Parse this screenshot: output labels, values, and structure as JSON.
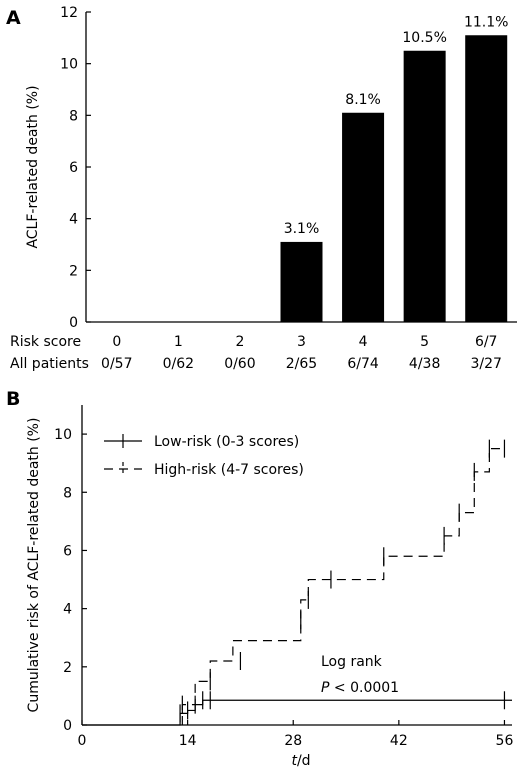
{
  "chart_data": [
    {
      "panel_label": "A",
      "type": "bar",
      "ylabel": "ACLF-related death (%)",
      "ylim": [
        0,
        12
      ],
      "yticks": [
        0,
        2,
        4,
        6,
        8,
        10,
        12
      ],
      "bar_color": "#000000",
      "row_labels": [
        "Risk score",
        "All patients"
      ],
      "categories": [
        "0",
        "1",
        "2",
        "3",
        "4",
        "5",
        "6/7"
      ],
      "all_patients": [
        "0/57",
        "0/62",
        "0/60",
        "2/65",
        "6/74",
        "4/38",
        "3/27"
      ],
      "values": [
        0,
        0,
        0,
        3.1,
        8.1,
        10.5,
        11.1
      ],
      "data_labels": [
        "",
        "",
        "",
        "3.1%",
        "8.1%",
        "10.5%",
        "11.1%"
      ]
    },
    {
      "panel_label": "B",
      "type": "line",
      "ylabel": "Cumulative risk of ACLF-related death (%)",
      "xlabel_italic": "t",
      "xlabel_rest": "/d",
      "xlim": [
        0,
        57
      ],
      "ylim": [
        0,
        11
      ],
      "xticks": [
        0,
        14,
        28,
        42,
        56
      ],
      "yticks": [
        0,
        2,
        4,
        6,
        8,
        10
      ],
      "legend_position": "top-left",
      "series": [
        {
          "name": "Low-risk (0-3 scores)",
          "dash": "solid",
          "x": [
            0,
            13,
            13,
            14,
            14,
            15,
            15,
            16,
            16,
            57
          ],
          "y": [
            0,
            0,
            0.4,
            0.4,
            0.5,
            0.5,
            0.7,
            0.7,
            0.85,
            0.85
          ],
          "censor_x": [
            13,
            14,
            15,
            16,
            17,
            56
          ],
          "censor_y": [
            0.4,
            0.5,
            0.7,
            0.85,
            0.85,
            0.85
          ]
        },
        {
          "name": "High-risk (4-7 scores)",
          "dash": "dashed",
          "x": [
            13.3,
            13.3,
            15,
            15,
            17,
            17,
            20,
            20,
            21,
            21,
            29,
            29,
            30,
            30,
            33,
            33,
            40,
            40,
            48,
            48,
            50,
            50,
            52,
            52,
            54,
            54,
            56
          ],
          "y": [
            0,
            0.7,
            0.7,
            1.5,
            1.5,
            2.2,
            2.2,
            2.9,
            2.9,
            2.9,
            2.9,
            4.3,
            4.3,
            5.0,
            5.0,
            5.0,
            5.0,
            5.8,
            5.8,
            6.5,
            6.5,
            7.3,
            7.3,
            8.7,
            8.7,
            9.5,
            9.5
          ],
          "censor_x": [
            13.3,
            17,
            21,
            29,
            30,
            33,
            40,
            48,
            50,
            52,
            54,
            56
          ],
          "censor_y": [
            0.7,
            1.5,
            2.2,
            3.6,
            4.3,
            5.0,
            5.8,
            6.5,
            7.3,
            8.7,
            9.5,
            9.5
          ]
        }
      ],
      "annotations": {
        "log_rank": "Log rank",
        "p_italic": "P",
        "p_rest": " < 0.0001"
      }
    }
  ]
}
